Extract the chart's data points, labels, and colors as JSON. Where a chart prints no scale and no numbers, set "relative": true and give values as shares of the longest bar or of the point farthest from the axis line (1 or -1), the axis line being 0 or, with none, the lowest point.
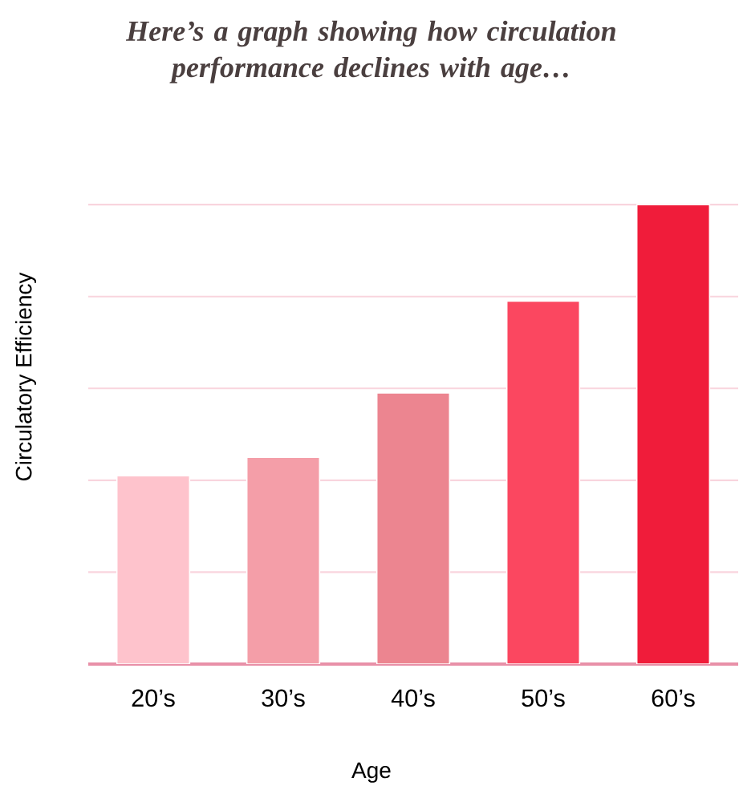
{
  "chart_data": {
    "type": "bar",
    "title": "Here’s a graph showing how circulation performance declines with age…",
    "xlabel": "Age",
    "ylabel": "Circulatory Efficiency",
    "categories": [
      "20’s",
      "30’s",
      "40’s",
      "50’s",
      "60’s"
    ],
    "values": [
      0.41,
      0.45,
      0.59,
      0.79,
      1
    ],
    "colors": [
      "#fec3cc",
      "#f49ea8",
      "#ec8590",
      "#fb4760",
      "#f01c3a"
    ],
    "relative": true,
    "grid": "y"
  }
}
